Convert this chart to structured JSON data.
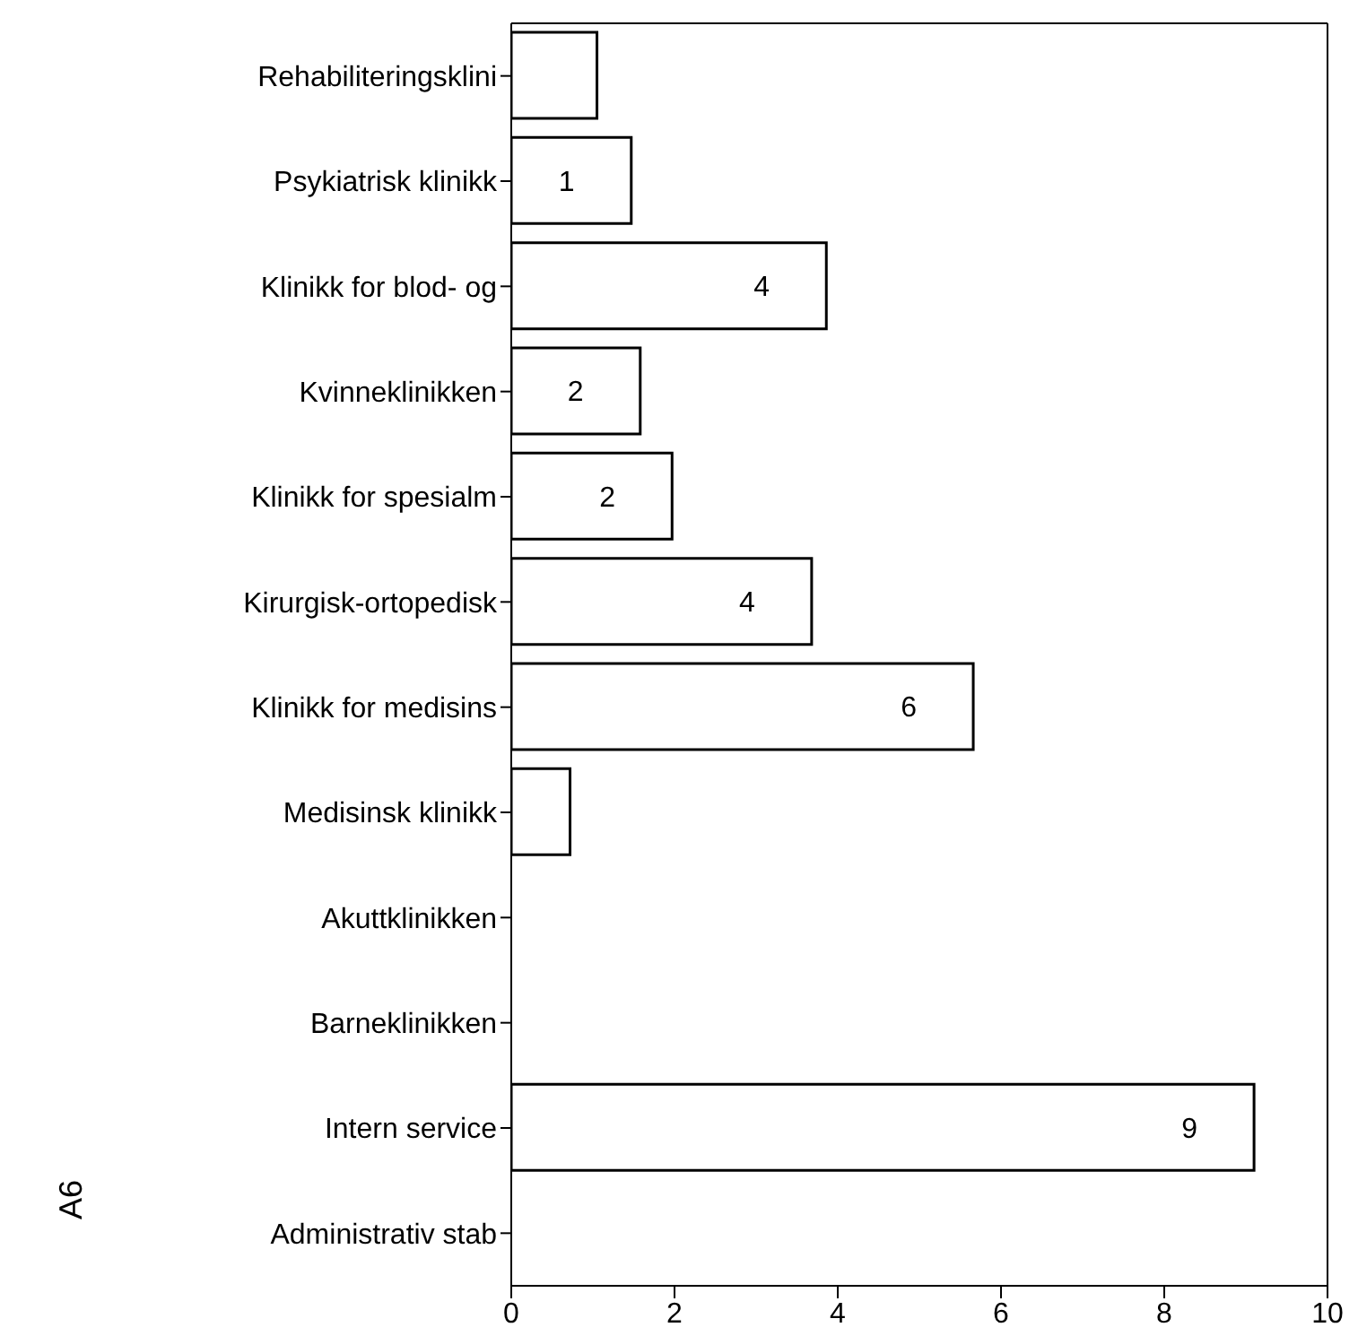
{
  "chart_data": {
    "type": "bar",
    "orientation": "horizontal",
    "ylabel": "A6",
    "categories": [
      "Rehabiliteringsklini",
      "Psykiatrisk klinikk",
      "Klinikk for blod- og",
      "Kvinneklinikken",
      "Klinikk for spesialm",
      "Kirurgisk-ortopedisk",
      "Klinikk for medisins",
      "Medisinsk klinikk",
      "Akuttklinikken",
      "Barneklinikken",
      "Intern service",
      "Administrativ stab"
    ],
    "values": [
      1.05,
      1.47,
      3.86,
      1.58,
      1.97,
      3.68,
      5.66,
      0.72,
      0,
      0,
      9.1,
      0
    ],
    "value_labels": [
      null,
      "1",
      "4",
      "2",
      "2",
      "4",
      "6",
      null,
      null,
      null,
      "9",
      null
    ],
    "color": "#ffffff",
    "xlim": [
      0,
      10
    ],
    "xticks": [
      0,
      2,
      4,
      6,
      8,
      10
    ],
    "grid": false
  }
}
